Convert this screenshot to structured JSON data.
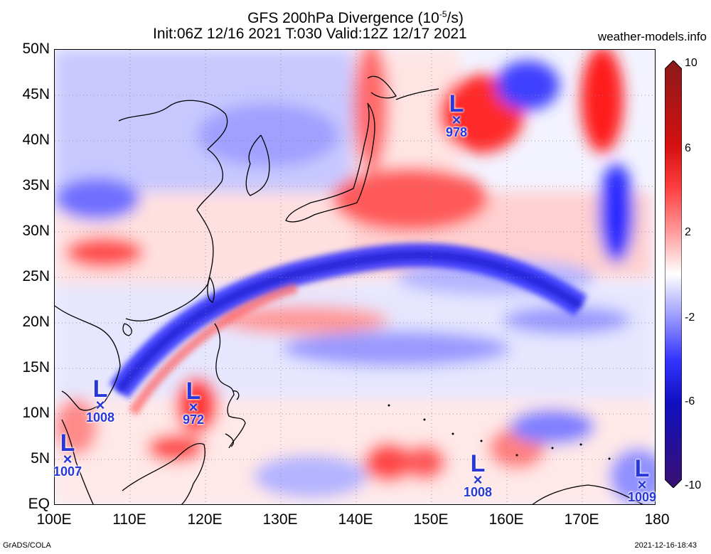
{
  "header": {
    "title_main": "GFS 200hPa Divergence (10",
    "title_exp": "-5",
    "title_unit": "/s)",
    "title_line2": "Init:06Z 12/16 2021 T:030 Valid:12Z 12/17 2021",
    "site": "weather-models.info"
  },
  "axes": {
    "lat_labels": [
      "50N",
      "45N",
      "40N",
      "35N",
      "30N",
      "25N",
      "20N",
      "15N",
      "10N",
      "5N",
      "EQ"
    ],
    "lon_labels": [
      "100E",
      "110E",
      "120E",
      "130E",
      "140E",
      "150E",
      "160E",
      "170E",
      "180"
    ]
  },
  "colorbar": {
    "labels": [
      "10",
      "6",
      "2",
      "-2",
      "-6",
      "-10"
    ],
    "colors": [
      "#8a1a1a",
      "#d41010",
      "#ff4040",
      "#ff9a9a",
      "#ffffff",
      "#9a9aff",
      "#3434ff",
      "#1010c0",
      "#3a1070"
    ]
  },
  "systems": [
    {
      "letter": "L",
      "mark": "×",
      "pressure": "978"
    },
    {
      "letter": "L",
      "mark": "×",
      "pressure": "1008"
    },
    {
      "letter": "L",
      "mark": "×",
      "pressure": "972"
    },
    {
      "letter": "L",
      "mark": "×",
      "pressure": "1007"
    },
    {
      "letter": "L",
      "mark": "×",
      "pressure": "1008"
    },
    {
      "letter": "L",
      "mark": "×",
      "pressure": "1009"
    }
  ],
  "footer": {
    "credit": "GrADS/COLA",
    "timestamp": "2021-12-16-18:43"
  }
}
